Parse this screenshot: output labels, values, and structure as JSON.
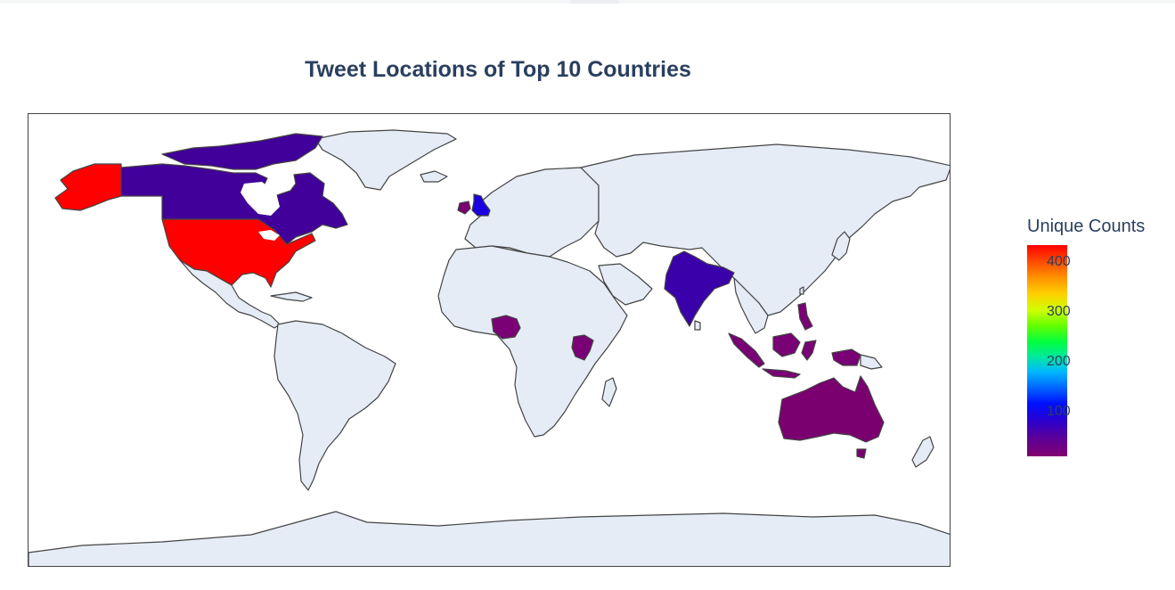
{
  "chart": {
    "title": "Tweet Locations of Top 10 Countries",
    "colorbar": {
      "title": "Unique Counts",
      "ticks": [
        "400",
        "300",
        "200",
        "100"
      ],
      "range": [
        14,
        435
      ],
      "colorscale": [
        "#800070",
        "#2a00d0",
        "#0010ff",
        "#00b8ff",
        "#00ff40",
        "#ccff00",
        "#ff8f00",
        "#ff0000"
      ]
    }
  },
  "chart_data": {
    "type": "choropleth",
    "title": "Tweet Locations of Top 10 Countries",
    "colorbar_title": "Unique Counts",
    "colorbar_range": [
      14,
      435
    ],
    "land_color": "#e5ecf6",
    "regions": [
      {
        "name": "United States",
        "value": 430,
        "color": "#ff0000"
      },
      {
        "name": "Canada",
        "value": 40,
        "color": "#400099"
      },
      {
        "name": "United Kingdom",
        "value": 80,
        "color": "#1a00e0"
      },
      {
        "name": "Ireland",
        "value": 20,
        "color": "#7a0070"
      },
      {
        "name": "India",
        "value": 45,
        "color": "#3a00aa"
      },
      {
        "name": "Nigeria",
        "value": 15,
        "color": "#7a0075"
      },
      {
        "name": "Kenya",
        "value": 15,
        "color": "#7a0075"
      },
      {
        "name": "Indonesia",
        "value": 15,
        "color": "#7a0075"
      },
      {
        "name": "Philippines",
        "value": 15,
        "color": "#7a0075"
      },
      {
        "name": "Australia",
        "value": 14,
        "color": "#7a0070"
      }
    ]
  }
}
